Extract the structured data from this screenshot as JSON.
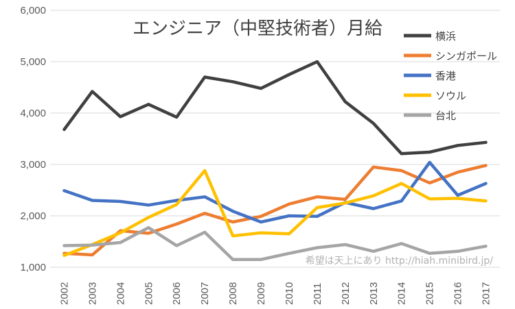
{
  "chart_data": {
    "type": "line",
    "title": "エンジニア（中堅技術者）月給",
    "categories": [
      "2002",
      "2003",
      "2004",
      "2005",
      "2006",
      "2007",
      "2008",
      "2009",
      "2010",
      "2011",
      "2012",
      "2013",
      "2014",
      "2015",
      "2016",
      "2017"
    ],
    "ylim": [
      1000,
      6000
    ],
    "yticks": [
      1000,
      2000,
      3000,
      4000,
      5000,
      6000
    ],
    "ytick_labels": [
      "1,000",
      "2,000",
      "3,000",
      "4,000",
      "5,000",
      "6,000"
    ],
    "grid": true,
    "legend_position": "top-right",
    "series": [
      {
        "name": "横浜",
        "color": "#404040",
        "values": [
          3680,
          4420,
          3930,
          4170,
          3920,
          4700,
          4610,
          4480,
          4750,
          5000,
          4220,
          3800,
          3210,
          3240,
          3370,
          3430
        ]
      },
      {
        "name": "シンガポール",
        "color": "#ED7D31",
        "values": [
          1270,
          1240,
          1710,
          1660,
          1840,
          2050,
          1880,
          1990,
          2230,
          2370,
          2320,
          2950,
          2880,
          2640,
          2850,
          2980
        ]
      },
      {
        "name": "香港",
        "color": "#4472C4",
        "values": [
          2490,
          2300,
          2280,
          2210,
          2300,
          2370,
          2090,
          1880,
          2000,
          1990,
          2260,
          2140,
          2290,
          3040,
          2400,
          2630
        ]
      },
      {
        "name": "ソウル",
        "color": "#FFC000",
        "values": [
          1230,
          1440,
          1670,
          1970,
          2220,
          2880,
          1610,
          1670,
          1650,
          2160,
          2250,
          2390,
          2630,
          2330,
          2340,
          2290
        ]
      },
      {
        "name": "台北",
        "color": "#A5A5A5",
        "values": [
          1420,
          1430,
          1480,
          1770,
          1420,
          1680,
          1150,
          1150,
          1270,
          1380,
          1440,
          1310,
          1460,
          1270,
          1310,
          1410
        ]
      }
    ]
  },
  "watermark": "希望は天上にあり http://hiah.minibird.jp/"
}
